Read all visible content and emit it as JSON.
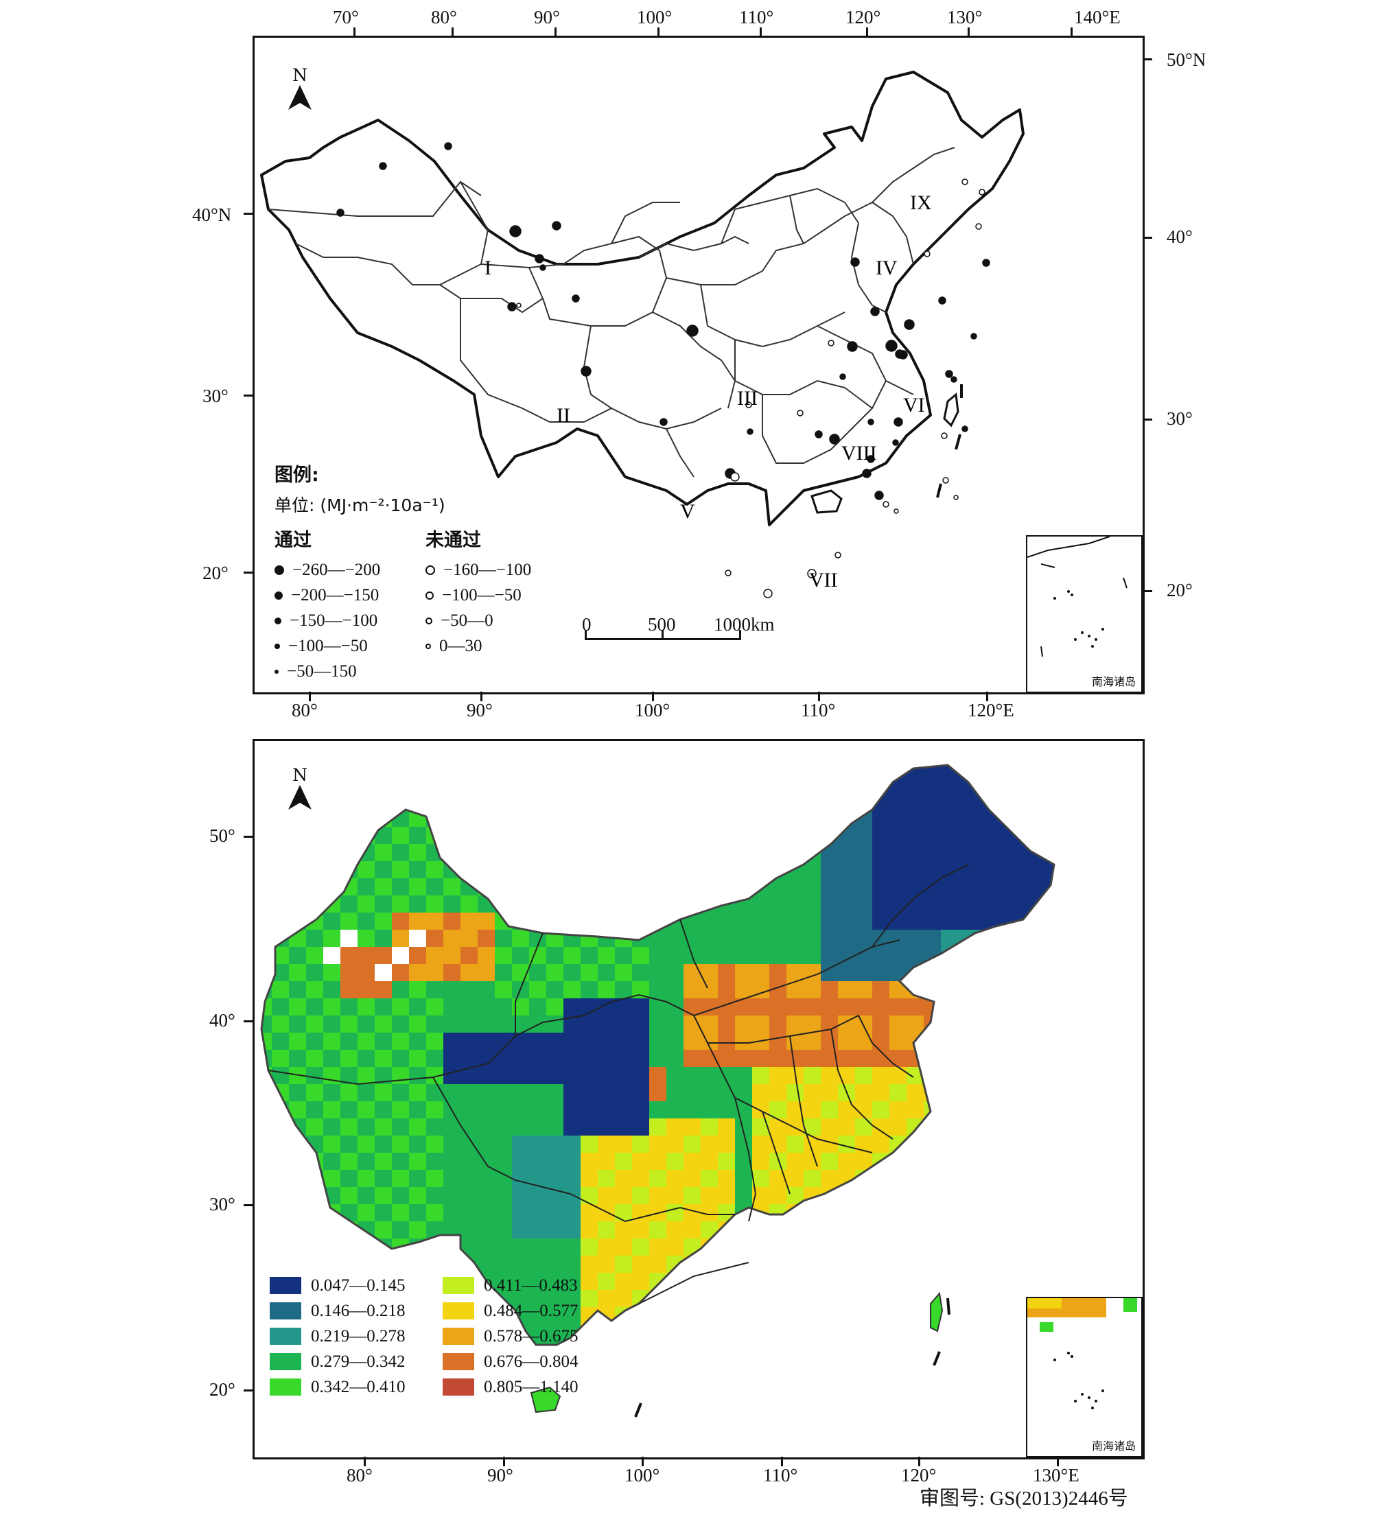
{
  "top_map": {
    "top_axis_labels": [
      "70°",
      "80°",
      "90°",
      "100°",
      "110°",
      "120°",
      "130°",
      "140°E"
    ],
    "bottom_axis_labels": [
      "80°",
      "90°",
      "100°",
      "110°",
      "120°E"
    ],
    "left_axis_labels": [
      "40°N",
      "30°",
      "20°"
    ],
    "right_axis_labels": [
      "50°N",
      "40°",
      "30°",
      "20°"
    ],
    "north_label": "N",
    "regions": [
      {
        "id": "I",
        "label": "I"
      },
      {
        "id": "II",
        "label": "II"
      },
      {
        "id": "III",
        "label": "III"
      },
      {
        "id": "IV",
        "label": "IV"
      },
      {
        "id": "V",
        "label": "V"
      },
      {
        "id": "VI",
        "label": "VI"
      },
      {
        "id": "VII",
        "label": "VII"
      },
      {
        "id": "VIII",
        "label": "VIII"
      },
      {
        "id": "IX",
        "label": "IX"
      }
    ],
    "legend": {
      "title": "图例:",
      "unit": "单位: (MJ·m⁻²·10a⁻¹)",
      "passed_header": "通过",
      "failed_header": "未通过",
      "passed_classes": [
        "−260—−200",
        "−200—−150",
        "−150—−100",
        "−100—−50",
        "−50—150"
      ],
      "failed_classes": [
        "−160—−100",
        "−100—−50",
        "−50—0",
        "0—30"
      ]
    },
    "scalebar": {
      "ticks": [
        "0",
        "500",
        "1000km"
      ]
    },
    "inset_label": "南海诸岛"
  },
  "bottom_map": {
    "left_axis_labels": [
      "50°",
      "40°",
      "30°",
      "20°"
    ],
    "bottom_axis_labels": [
      "80°",
      "90°",
      "100°",
      "110°",
      "120°",
      "130°E"
    ],
    "north_label": "N",
    "legend_classes": [
      {
        "label": "0.047—0.145",
        "color": "#13317f"
      },
      {
        "label": "0.146—0.218",
        "color": "#1f6b86"
      },
      {
        "label": "0.219—0.278",
        "color": "#23988a"
      },
      {
        "label": "0.279—0.342",
        "color": "#1cb552"
      },
      {
        "label": "0.342—0.410",
        "color": "#38d92a"
      },
      {
        "label": "0.411—0.483",
        "color": "#c3ee1f"
      },
      {
        "label": "0.484—0.577",
        "color": "#f4d410"
      },
      {
        "label": "0.578—0.675",
        "color": "#eba516"
      },
      {
        "label": "0.676—0.804",
        "color": "#db7126"
      },
      {
        "label": "0.805—1.140",
        "color": "#c24a35"
      }
    ],
    "inset_label": "南海诸岛"
  },
  "footer": {
    "map_approval": "审图号: GS(2013)2446号"
  }
}
